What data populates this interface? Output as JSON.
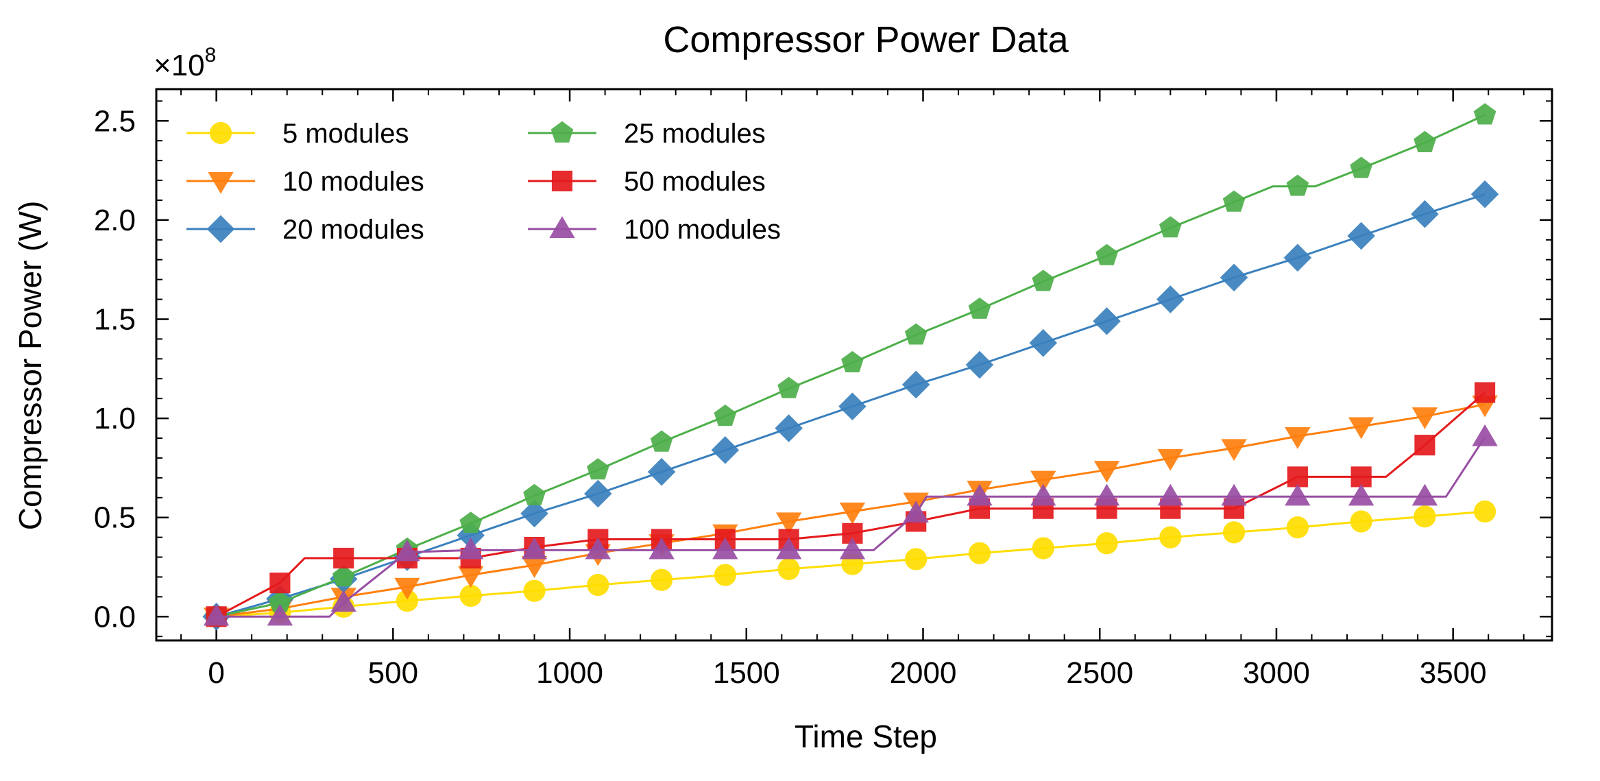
{
  "chart_data": {
    "type": "line",
    "title": "Compressor Power Data",
    "xlabel": "Time Step",
    "ylabel": "Compressor Power (W)",
    "y_multiplier": {
      "base": "×10",
      "exponent": "8"
    },
    "xlim": [
      -170,
      3780
    ],
    "ylim": [
      -0.12,
      2.66
    ],
    "x_ticks": [
      0,
      500,
      1000,
      1500,
      2000,
      2500,
      3000,
      3500
    ],
    "x_tick_labels": [
      "0",
      "500",
      "1000",
      "1500",
      "2000",
      "2500",
      "3000",
      "3500"
    ],
    "y_ticks": [
      0.0,
      0.5,
      1.0,
      1.5,
      2.0,
      2.5
    ],
    "y_tick_labels": [
      "0.0",
      "0.5",
      "1.0",
      "1.5",
      "2.0",
      "2.5"
    ],
    "y_scale_note": "values in units of 1e8 W",
    "grid": false,
    "legend": {
      "position": "top-left",
      "columns": 2
    },
    "series": [
      {
        "name": "5 modules",
        "color": "#FFDD00",
        "marker": "circle",
        "points": [
          [
            0,
            0
          ],
          [
            180,
            0.02
          ],
          [
            360,
            0.05
          ],
          [
            540,
            0.08
          ],
          [
            720,
            0.105
          ],
          [
            900,
            0.13
          ],
          [
            1080,
            0.16
          ],
          [
            1260,
            0.185
          ],
          [
            1440,
            0.21
          ],
          [
            1620,
            0.24
          ],
          [
            1800,
            0.265
          ],
          [
            1980,
            0.29
          ],
          [
            2160,
            0.32
          ],
          [
            2340,
            0.345
          ],
          [
            2520,
            0.37
          ],
          [
            2700,
            0.4
          ],
          [
            2880,
            0.425
          ],
          [
            3060,
            0.45
          ],
          [
            3240,
            0.48
          ],
          [
            3420,
            0.505
          ],
          [
            3590,
            0.53
          ]
        ]
      },
      {
        "name": "10 modules",
        "color": "#FF7F0E",
        "marker": "triangle-down",
        "points": [
          [
            0,
            0
          ],
          [
            180,
            0.04
          ],
          [
            360,
            0.1
          ],
          [
            540,
            0.15
          ],
          [
            720,
            0.21
          ],
          [
            900,
            0.26
          ],
          [
            1080,
            0.32
          ],
          [
            1260,
            0.37
          ],
          [
            1440,
            0.42
          ],
          [
            1620,
            0.48
          ],
          [
            1800,
            0.53
          ],
          [
            1980,
            0.58
          ],
          [
            2160,
            0.64
          ],
          [
            2340,
            0.69
          ],
          [
            2520,
            0.74
          ],
          [
            2700,
            0.8
          ],
          [
            2880,
            0.85
          ],
          [
            3060,
            0.91
          ],
          [
            3240,
            0.96
          ],
          [
            3420,
            1.01
          ],
          [
            3590,
            1.07
          ]
        ]
      },
      {
        "name": "20 modules",
        "color": "#3A80BD",
        "marker": "diamond",
        "points": [
          [
            0,
            0
          ],
          [
            180,
            0.09
          ],
          [
            360,
            0.19
          ],
          [
            540,
            0.3
          ],
          [
            720,
            0.41
          ],
          [
            900,
            0.52
          ],
          [
            1080,
            0.62
          ],
          [
            1260,
            0.73
          ],
          [
            1440,
            0.84
          ],
          [
            1620,
            0.95
          ],
          [
            1800,
            1.06
          ],
          [
            1980,
            1.17
          ],
          [
            2160,
            1.27
          ],
          [
            2340,
            1.38
          ],
          [
            2520,
            1.49
          ],
          [
            2700,
            1.6
          ],
          [
            2880,
            1.71
          ],
          [
            3060,
            1.81
          ],
          [
            3240,
            1.92
          ],
          [
            3420,
            2.03
          ],
          [
            3590,
            2.13
          ]
        ]
      },
      {
        "name": "25 modules",
        "color": "#4DAF4A",
        "marker": "pentagon",
        "points": [
          [
            0,
            0
          ],
          [
            180,
            0.07
          ],
          [
            360,
            0.2
          ],
          [
            540,
            0.34
          ],
          [
            720,
            0.47
          ],
          [
            900,
            0.61
          ],
          [
            1080,
            0.74
          ],
          [
            1260,
            0.88
          ],
          [
            1440,
            1.01
          ],
          [
            1620,
            1.15
          ],
          [
            1800,
            1.28
          ],
          [
            1980,
            1.42
          ],
          [
            2160,
            1.55
          ],
          [
            2340,
            1.69
          ],
          [
            2520,
            1.82
          ],
          [
            2700,
            1.96
          ],
          [
            2880,
            2.09
          ],
          [
            2990,
            2.17
          ],
          [
            3060,
            2.17
          ],
          [
            3110,
            2.17
          ],
          [
            3240,
            2.26
          ],
          [
            3420,
            2.39
          ],
          [
            3590,
            2.53
          ]
        ]
      },
      {
        "name": "50 modules",
        "color": "#E41A1C",
        "marker": "square",
        "points": [
          [
            0,
            0
          ],
          [
            180,
            0.17
          ],
          [
            250,
            0.295
          ],
          [
            360,
            0.295
          ],
          [
            540,
            0.295
          ],
          [
            720,
            0.295
          ],
          [
            900,
            0.35
          ],
          [
            1080,
            0.39
          ],
          [
            1260,
            0.39
          ],
          [
            1440,
            0.39
          ],
          [
            1620,
            0.39
          ],
          [
            1800,
            0.42
          ],
          [
            1980,
            0.48
          ],
          [
            2160,
            0.545
          ],
          [
            2340,
            0.545
          ],
          [
            2520,
            0.545
          ],
          [
            2700,
            0.545
          ],
          [
            2880,
            0.545
          ],
          [
            3060,
            0.705
          ],
          [
            3240,
            0.705
          ],
          [
            3310,
            0.705
          ],
          [
            3420,
            0.865
          ],
          [
            3590,
            1.13
          ]
        ]
      },
      {
        "name": "100 modules",
        "color": "#984EA3",
        "marker": "triangle-up",
        "points": [
          [
            0,
            0
          ],
          [
            180,
            0
          ],
          [
            320,
            0
          ],
          [
            360,
            0.07
          ],
          [
            540,
            0.325
          ],
          [
            720,
            0.335
          ],
          [
            900,
            0.335
          ],
          [
            1080,
            0.335
          ],
          [
            1260,
            0.335
          ],
          [
            1440,
            0.335
          ],
          [
            1620,
            0.335
          ],
          [
            1800,
            0.335
          ],
          [
            1860,
            0.335
          ],
          [
            1980,
            0.52
          ],
          [
            2010,
            0.605
          ],
          [
            2160,
            0.605
          ],
          [
            2340,
            0.605
          ],
          [
            2520,
            0.605
          ],
          [
            2700,
            0.605
          ],
          [
            2880,
            0.605
          ],
          [
            3060,
            0.605
          ],
          [
            3240,
            0.605
          ],
          [
            3420,
            0.605
          ],
          [
            3480,
            0.605
          ],
          [
            3590,
            0.905
          ]
        ]
      }
    ]
  }
}
